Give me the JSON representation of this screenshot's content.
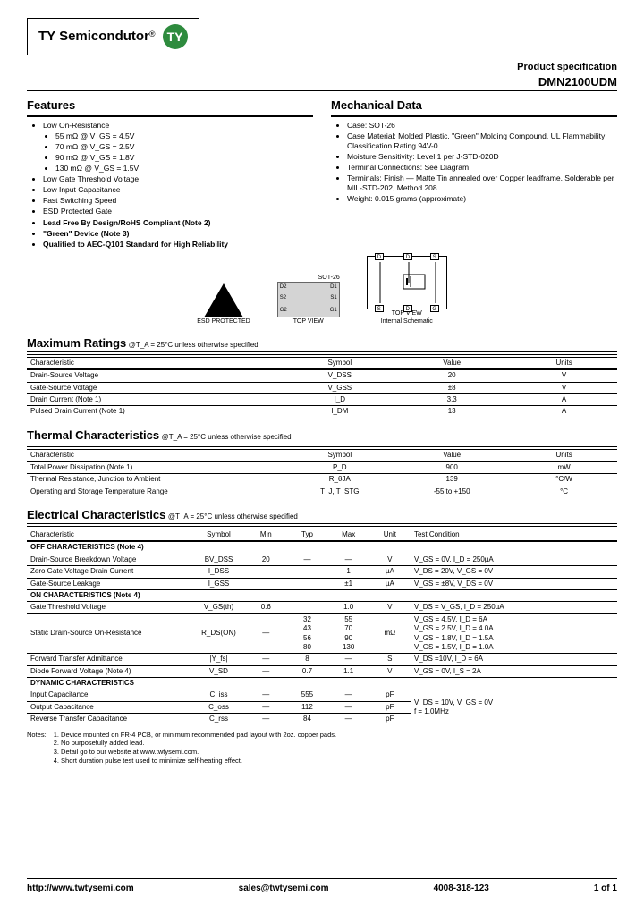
{
  "header": {
    "company": "TY Semicondutor",
    "logo_initials": "TY",
    "logo_color": "#2e8b3e",
    "prod_spec_label": "Product specification",
    "part_number": "DMN2100UDM"
  },
  "features": {
    "title": "Features",
    "items": [
      "Low On-Resistance",
      "Low Gate Threshold Voltage",
      "Low Input Capacitance",
      "Fast Switching Speed",
      "ESD Protected Gate",
      "Lead Free By Design/RoHS Compliant (Note 2)",
      "\"Green\" Device (Note 3)",
      "Qualified to AEC-Q101 Standard for High Reliability"
    ],
    "sub_items": [
      "55 mΩ @ V_GS = 4.5V",
      "70 mΩ @ V_GS = 2.5V",
      "90 mΩ @ V_GS = 1.8V",
      "130 mΩ @ V_GS = 1.5V"
    ]
  },
  "mechanical": {
    "title": "Mechanical Data",
    "items": [
      "Case: SOT-26",
      "Case Material: Molded Plastic. \"Green\" Molding Compound. UL Flammability Classification Rating 94V-0",
      "Moisture Sensitivity: Level 1 per J-STD-020D",
      "Terminal Connections: See Diagram",
      "Terminals: Finish — Matte Tin annealed over Copper leadframe. Solderable per MIL-STD-202, Method 208",
      "Weight: 0.015 grams (approximate)"
    ]
  },
  "images": {
    "esd_label": "ESD PROTECTED",
    "sot_label": "SOT-26",
    "top_view": "TOP VIEW",
    "schematic_label": "TOP VIEW\nInternal Schematic",
    "pins": {
      "d1": "D1",
      "s1": "S1",
      "g1": "G1",
      "d2": "D2",
      "s2": "S2",
      "g2": "G2",
      "d": "D",
      "s": "S",
      "g": "G"
    }
  },
  "max_ratings": {
    "title": "Maximum Ratings",
    "cond": "@T_A = 25°C unless otherwise specified",
    "headers": [
      "Characteristic",
      "Symbol",
      "Value",
      "Units"
    ],
    "rows": [
      [
        "Drain-Source Voltage",
        "V_DSS",
        "20",
        "V"
      ],
      [
        "Gate-Source Voltage",
        "V_GSS",
        "±8",
        "V"
      ],
      [
        "Drain Current (Note 1)",
        "I_D",
        "3.3",
        "A"
      ],
      [
        "Pulsed Drain Current (Note 1)",
        "I_DM",
        "13",
        "A"
      ]
    ]
  },
  "thermal": {
    "title": "Thermal Characteristics",
    "cond": "@T_A = 25°C unless otherwise specified",
    "headers": [
      "Characteristic",
      "Symbol",
      "Value",
      "Units"
    ],
    "rows": [
      [
        "Total Power Dissipation (Note 1)",
        "P_D",
        "900",
        "mW"
      ],
      [
        "Thermal Resistance, Junction to Ambient",
        "R_θJA",
        "139",
        "°C/W"
      ],
      [
        "Operating and Storage Temperature Range",
        "T_J, T_STG",
        "-55 to +150",
        "°C"
      ]
    ]
  },
  "electrical": {
    "title": "Electrical Characteristics",
    "cond": "@T_A = 25°C unless otherwise specified",
    "headers": [
      "Characteristic",
      "Symbol",
      "Min",
      "Typ",
      "Max",
      "Unit",
      "Test Condition"
    ],
    "groups": [
      {
        "name": "OFF CHARACTERISTICS (Note 4)",
        "rows": [
          [
            "Drain-Source Breakdown Voltage",
            "BV_DSS",
            "20",
            "—",
            "—",
            "V",
            "V_GS = 0V, I_D = 250µA"
          ],
          [
            "Zero Gate Voltage Drain Current",
            "I_DSS",
            "",
            "",
            "1",
            "µA",
            "V_DS = 20V, V_GS = 0V"
          ],
          [
            "Gate-Source Leakage",
            "I_GSS",
            "",
            "",
            "±1",
            "µA",
            "V_GS = ±8V, V_DS = 0V"
          ]
        ]
      },
      {
        "name": "ON CHARACTERISTICS (Note 4)",
        "rows": [
          [
            "Gate Threshold Voltage",
            "V_GS(th)",
            "0.6",
            "",
            "1.0",
            "V",
            "V_DS = V_GS, I_D = 250µA"
          ],
          [
            "Static Drain-Source On-Resistance",
            "R_DS(ON)",
            "—",
            "32\n43\n56\n80",
            "55\n70\n90\n130",
            "mΩ",
            "V_GS = 4.5V, I_D = 6A\nV_GS = 2.5V, I_D = 4.0A\nV_GS = 1.8V, I_D = 1.5A\nV_GS = 1.5V, I_D = 1.0A"
          ],
          [
            "Forward Transfer Admittance",
            "|Y_fs|",
            "—",
            "8",
            "—",
            "S",
            "V_DS =10V, I_D = 6A"
          ],
          [
            "Diode Forward Voltage (Note 4)",
            "V_SD",
            "—",
            "0.7",
            "1.1",
            "V",
            "V_GS = 0V, I_S = 2A"
          ]
        ]
      },
      {
        "name": "DYNAMIC CHARACTERISTICS",
        "rows": [
          [
            "Input Capacitance",
            "C_iss",
            "—",
            "555",
            "—",
            "pF",
            "V_DS = 10V, V_GS = 0V\nf = 1.0MHz"
          ],
          [
            "Output Capacitance",
            "C_oss",
            "—",
            "112",
            "—",
            "pF",
            ""
          ],
          [
            "Reverse Transfer Capacitance",
            "C_rss",
            "—",
            "84",
            "—",
            "pF",
            ""
          ]
        ]
      }
    ]
  },
  "notes": {
    "label": "Notes:",
    "items": [
      "1. Device mounted on FR-4 PCB, or minimum recommended pad layout with 2oz. copper pads.",
      "2. No purposefully added lead.",
      "3. Detail go to our website at www.twtysemi.com.",
      "4. Short duration pulse test used to minimize self-heating effect."
    ]
  },
  "footer": {
    "url": "http://www.twtysemi.com",
    "email": "sales@twtysemi.com",
    "phone": "4008-318-123",
    "page": "1 of 1"
  }
}
